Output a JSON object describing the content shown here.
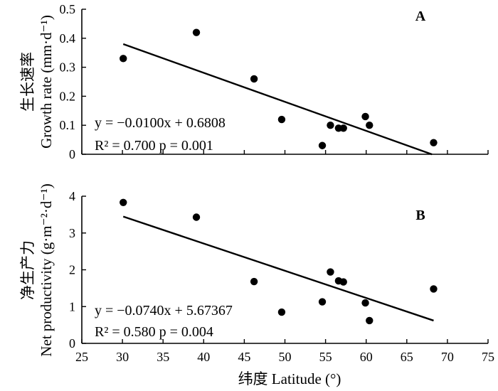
{
  "chart_data": [
    {
      "type": "scatter",
      "panel_label": "A",
      "ylabel_cn": "生长速率",
      "ylabel_en": "Growth rate (mm·d⁻¹)",
      "ylim": [
        0,
        0.5
      ],
      "yticks": [
        0,
        0.1,
        0.2,
        0.3,
        0.4,
        0.5
      ],
      "ytick_labels": [
        "0",
        "0.1",
        "0.2",
        "0.3",
        "0.4",
        "0.5"
      ],
      "xlim": [
        25,
        75
      ],
      "points": [
        {
          "x": 30.1,
          "y": 0.33
        },
        {
          "x": 39.1,
          "y": 0.42
        },
        {
          "x": 46.2,
          "y": 0.26
        },
        {
          "x": 49.6,
          "y": 0.12
        },
        {
          "x": 54.6,
          "y": 0.03
        },
        {
          "x": 55.6,
          "y": 0.1
        },
        {
          "x": 56.6,
          "y": 0.09
        },
        {
          "x": 57.2,
          "y": 0.09
        },
        {
          "x": 59.9,
          "y": 0.13
        },
        {
          "x": 60.4,
          "y": 0.1
        },
        {
          "x": 68.3,
          "y": 0.04
        }
      ],
      "fit": {
        "slope": -0.01,
        "intercept": 0.6808,
        "x_range": [
          30.1,
          68.1
        ]
      },
      "equation": "y = −0.0100x + 0.6808",
      "stats": "R² = 0.700 p = 0.001"
    },
    {
      "type": "scatter",
      "panel_label": "B",
      "ylabel_cn": "净生产力",
      "ylabel_en": "Net productivity (g·m⁻²·d⁻¹)",
      "ylim": [
        0,
        4
      ],
      "yticks": [
        0,
        1,
        2,
        3,
        4
      ],
      "ytick_labels": [
        "0",
        "1",
        "2",
        "3",
        "4"
      ],
      "xlim": [
        25,
        75
      ],
      "points": [
        {
          "x": 30.1,
          "y": 3.83
        },
        {
          "x": 39.1,
          "y": 3.43
        },
        {
          "x": 46.2,
          "y": 1.68
        },
        {
          "x": 49.6,
          "y": 0.85
        },
        {
          "x": 54.6,
          "y": 1.13
        },
        {
          "x": 55.6,
          "y": 1.94
        },
        {
          "x": 56.6,
          "y": 1.7
        },
        {
          "x": 57.2,
          "y": 1.67
        },
        {
          "x": 59.9,
          "y": 1.1
        },
        {
          "x": 60.4,
          "y": 0.62
        },
        {
          "x": 68.3,
          "y": 1.48
        }
      ],
      "fit": {
        "slope": -0.074,
        "intercept": 5.67367,
        "x_range": [
          30.1,
          68.3
        ]
      },
      "equation": "y = −0.0740x + 5.67367",
      "stats": "R² = 0.580 p = 0.004"
    }
  ],
  "x_axis": {
    "label": "纬度 Latitude (°)",
    "ticks": [
      25,
      30,
      35,
      40,
      45,
      50,
      55,
      60,
      65,
      70,
      75
    ]
  }
}
